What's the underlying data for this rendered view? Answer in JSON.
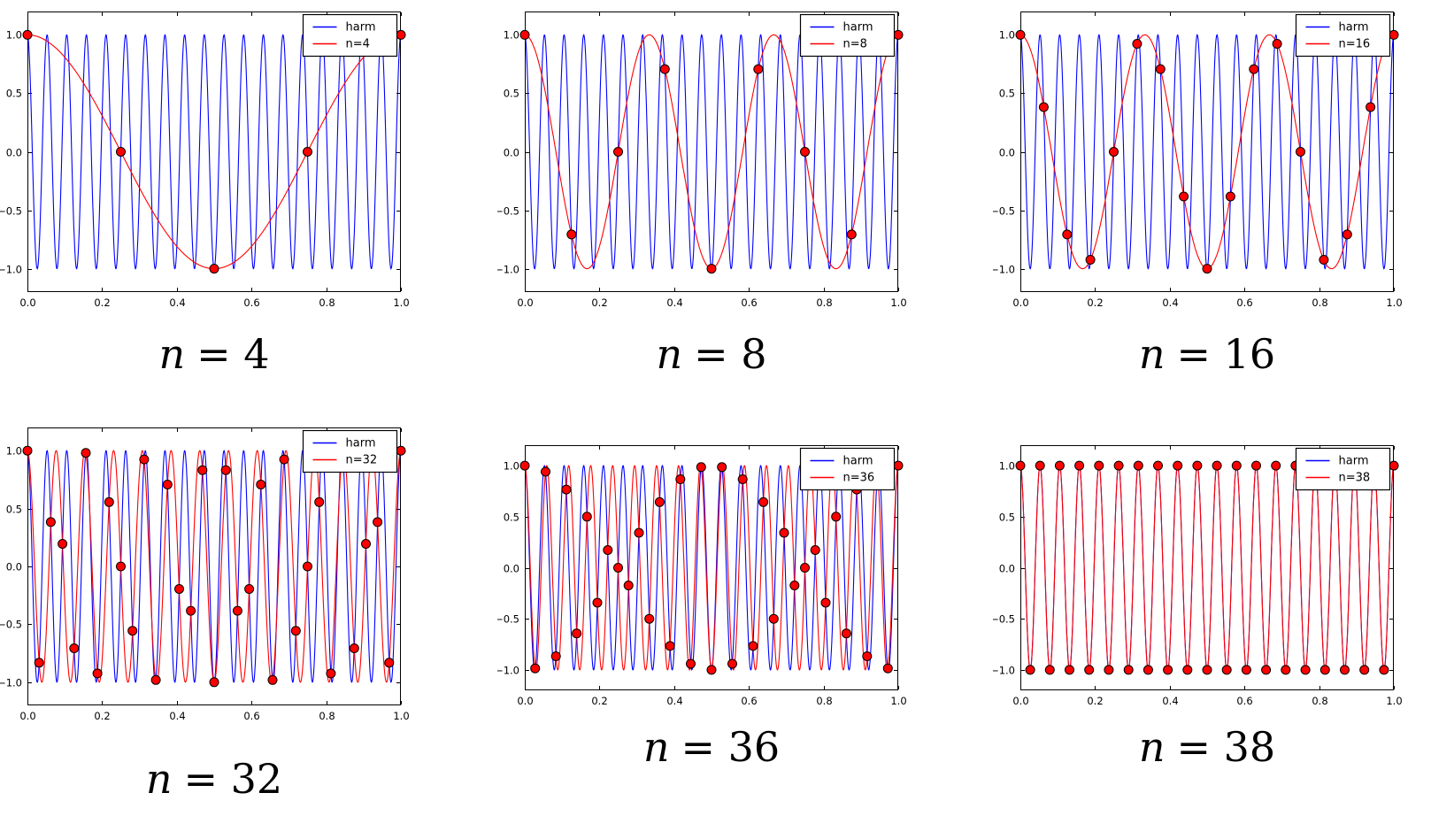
{
  "figure": {
    "background": "#ffffff",
    "description": "Aliasing demonstration: harmonic cos(2*pi*19*t) sampled with n samples per unit interval; red curve is the aliased reconstruction"
  },
  "chart_data": {
    "type": "line",
    "harmonic_frequency_hz": 19,
    "xlim": [
      0,
      1
    ],
    "ylim": [
      -1.2,
      1.2
    ],
    "grid": false,
    "legend_position": "upper right",
    "x_ticks": [
      0,
      0.2,
      0.4,
      0.6,
      0.8,
      1.0
    ],
    "x_tick_labels": [
      "0.0",
      "0.2",
      "0.4",
      "0.6",
      "0.8",
      "1.0"
    ],
    "y_ticks": [
      1.0,
      0.5,
      0.0,
      -0.5,
      -1.0
    ],
    "y_tick_labels": [
      "1.0",
      "0.5",
      "0.0",
      "−0.5",
      "−1.0"
    ],
    "colors": {
      "harmonic_line": "#0000ff",
      "alias_line": "#ff0000",
      "marker_fill": "#ff0000",
      "marker_edge": "#000000",
      "frame": "#000000",
      "legend_background": "#ffffff"
    },
    "subplots": [
      {
        "n": 4,
        "alias_frequency_hz": 1,
        "title_symbol": "n",
        "title_rest": "= 4",
        "legend": [
          "harm",
          "n=4"
        ],
        "samples_x": [
          0,
          0.25,
          0.5,
          0.75,
          1
        ],
        "samples_y": [
          1,
          0,
          -1,
          0,
          1
        ]
      },
      {
        "n": 8,
        "alias_frequency_hz": 3,
        "title_symbol": "n",
        "title_rest": "= 8",
        "legend": [
          "harm",
          "n=8"
        ],
        "samples_x": [
          0,
          0.125,
          0.25,
          0.375,
          0.5,
          0.625,
          0.75,
          0.875,
          1
        ],
        "samples_y": [
          1,
          -0.7071,
          0,
          0.7071,
          -1,
          0.7071,
          0,
          -0.7071,
          1
        ]
      },
      {
        "n": 16,
        "alias_frequency_hz": 3,
        "title_symbol": "n",
        "title_rest": "= 16",
        "legend": [
          "harm",
          "n=16"
        ],
        "samples_x": [
          0,
          0.0625,
          0.125,
          0.1875,
          0.25,
          0.3125,
          0.375,
          0.4375,
          0.5,
          0.5625,
          0.625,
          0.6875,
          0.75,
          0.8125,
          0.875,
          0.9375,
          1
        ],
        "samples_y": [
          1,
          0.3827,
          -0.7071,
          -0.9239,
          0,
          0.9239,
          0.7071,
          -0.3827,
          -1,
          -0.3827,
          0.7071,
          0.9239,
          0,
          -0.9239,
          -0.7071,
          0.3827,
          1
        ]
      },
      {
        "n": 32,
        "alias_frequency_hz": 13,
        "title_symbol": "n",
        "title_rest": "= 32",
        "legend": [
          "harm",
          "n=32"
        ],
        "samples_x": [
          0,
          0.0313,
          0.0625,
          0.0938,
          0.125,
          0.1563,
          0.1875,
          0.2188,
          0.25,
          0.2813,
          0.3125,
          0.3438,
          0.375,
          0.4063,
          0.4375,
          0.4688,
          0.5,
          0.5313,
          0.5625,
          0.5938,
          0.625,
          0.6563,
          0.6875,
          0.7188,
          0.75,
          0.7813,
          0.8125,
          0.8438,
          0.875,
          0.9063,
          0.9375,
          0.9688,
          1
        ],
        "samples_y": [
          1,
          -0.8315,
          0.3827,
          0.1951,
          -0.7071,
          0.9808,
          -0.9239,
          0.5556,
          0,
          -0.5556,
          0.9239,
          -0.9808,
          0.7071,
          -0.1951,
          -0.3827,
          0.8315,
          -1,
          0.8315,
          -0.3827,
          -0.1951,
          0.7071,
          -0.9808,
          0.9239,
          -0.5556,
          0,
          0.5556,
          -0.9239,
          0.9808,
          -0.7071,
          0.1951,
          0.3827,
          -0.8315,
          1
        ]
      },
      {
        "n": 36,
        "alias_frequency_hz": 17,
        "title_symbol": "n",
        "title_rest": "= 36",
        "legend": [
          "harm",
          "n=36"
        ],
        "samples_x": [
          0,
          0.0278,
          0.0556,
          0.0833,
          0.1111,
          0.1389,
          0.1667,
          0.1944,
          0.2222,
          0.25,
          0.2778,
          0.3056,
          0.3333,
          0.3611,
          0.3889,
          0.4167,
          0.4444,
          0.4722,
          0.5,
          0.5278,
          0.5556,
          0.5833,
          0.6111,
          0.6389,
          0.6667,
          0.6944,
          0.7222,
          0.75,
          0.7778,
          0.8056,
          0.8333,
          0.8611,
          0.8889,
          0.9167,
          0.9444,
          0.9722,
          1
        ],
        "samples_y": [
          1,
          -0.9848,
          0.9397,
          -0.866,
          0.766,
          -0.6428,
          0.5,
          -0.342,
          0.1736,
          0,
          -0.1736,
          0.342,
          -0.5,
          0.6428,
          -0.766,
          0.866,
          -0.9397,
          0.9848,
          -1,
          0.9848,
          -0.9397,
          0.866,
          -0.766,
          0.6428,
          -0.5,
          0.342,
          -0.1736,
          0,
          0.1736,
          -0.342,
          0.5,
          -0.6428,
          0.766,
          -0.866,
          0.9397,
          -0.9848,
          1
        ]
      },
      {
        "n": 38,
        "alias_frequency_hz": 19,
        "title_symbol": "n",
        "title_rest": "= 38",
        "legend": [
          "harm",
          "n=38"
        ],
        "samples_x": [
          0,
          0.0263,
          0.0526,
          0.0789,
          0.1053,
          0.1316,
          0.1579,
          0.1842,
          0.2105,
          0.2368,
          0.2632,
          0.2895,
          0.3158,
          0.3421,
          0.3684,
          0.3947,
          0.4211,
          0.4474,
          0.4737,
          0.5,
          0.5263,
          0.5526,
          0.5789,
          0.6053,
          0.6316,
          0.6579,
          0.6842,
          0.7105,
          0.7368,
          0.7632,
          0.7895,
          0.8158,
          0.8421,
          0.8684,
          0.8947,
          0.9211,
          0.9474,
          0.9737,
          1
        ],
        "samples_y": [
          1,
          -1,
          1,
          -1,
          1,
          -1,
          1,
          -1,
          1,
          -1,
          1,
          -1,
          1,
          -1,
          1,
          -1,
          1,
          -1,
          1,
          -1,
          1,
          -1,
          1,
          -1,
          1,
          -1,
          1,
          -1,
          1,
          -1,
          1,
          -1,
          1,
          -1,
          1,
          -1,
          1,
          -1,
          1
        ]
      }
    ]
  }
}
